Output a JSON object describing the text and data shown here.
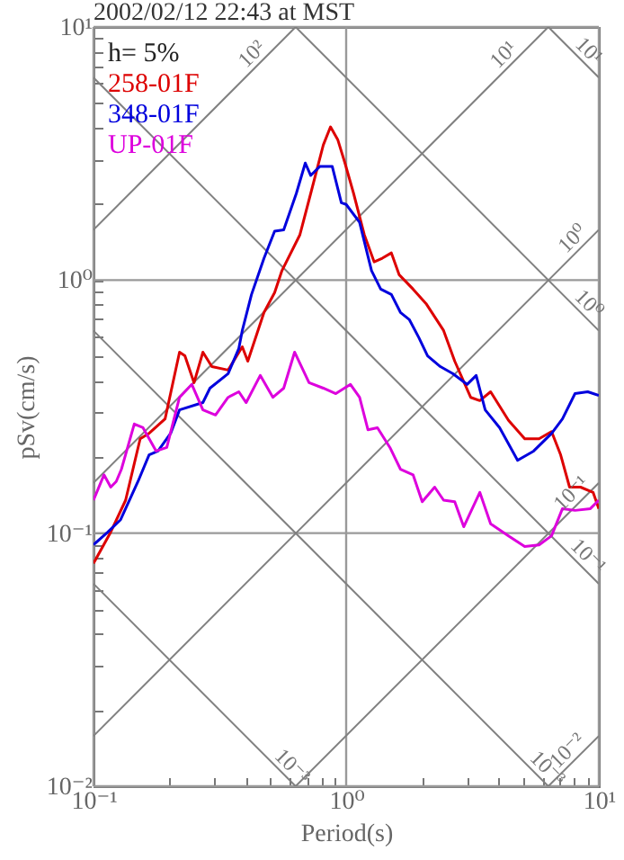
{
  "chart_data": {
    "type": "line",
    "title": "2002/02/12 22:43 at MST",
    "xlabel": "Period(s)",
    "ylabel": "pSv(cm/s)",
    "log": "xy",
    "grid": true,
    "legend": "top left",
    "xlim": [
      0.1,
      10
    ],
    "ylim": [
      0.01,
      10
    ],
    "xticks": [
      {
        "value": 0.1,
        "label": "10⁻¹"
      },
      {
        "value": 0.2,
        "label": null
      },
      {
        "value": 0.3,
        "label": null
      },
      {
        "value": 0.4,
        "label": null
      },
      {
        "value": 0.5,
        "label": null
      },
      {
        "value": 0.6,
        "label": null
      },
      {
        "value": 0.7,
        "label": null
      },
      {
        "value": 0.8,
        "label": null
      },
      {
        "value": 0.9,
        "label": null
      },
      {
        "value": 1,
        "label": "10⁰"
      },
      {
        "value": 2,
        "label": null
      },
      {
        "value": 3,
        "label": null
      },
      {
        "value": 4,
        "label": null
      },
      {
        "value": 5,
        "label": null
      },
      {
        "value": 6,
        "label": null
      },
      {
        "value": 7,
        "label": null
      },
      {
        "value": 8,
        "label": null
      },
      {
        "value": 9,
        "label": null
      },
      {
        "value": 10,
        "label": "10¹"
      }
    ],
    "yticks": [
      {
        "value": 0.01,
        "label": "10⁻²"
      },
      {
        "value": 0.02,
        "label": null
      },
      {
        "value": 0.03,
        "label": null
      },
      {
        "value": 0.04,
        "label": null
      },
      {
        "value": 0.05,
        "label": null
      },
      {
        "value": 0.06,
        "label": null
      },
      {
        "value": 0.07,
        "label": null
      },
      {
        "value": 0.08,
        "label": null
      },
      {
        "value": 0.09,
        "label": null
      },
      {
        "value": 0.1,
        "label": "10⁻¹"
      },
      {
        "value": 0.2,
        "label": null
      },
      {
        "value": 0.3,
        "label": null
      },
      {
        "value": 0.4,
        "label": null
      },
      {
        "value": 0.5,
        "label": null
      },
      {
        "value": 0.6,
        "label": null
      },
      {
        "value": 0.7,
        "label": null
      },
      {
        "value": 0.8,
        "label": null
      },
      {
        "value": 0.9,
        "label": null
      },
      {
        "value": 1,
        "label": "10⁰"
      },
      {
        "value": 2,
        "label": null
      },
      {
        "value": 3,
        "label": null
      },
      {
        "value": 4,
        "label": null
      },
      {
        "value": 5,
        "label": null
      },
      {
        "value": 6,
        "label": null
      },
      {
        "value": 7,
        "label": null
      },
      {
        "value": 8,
        "label": null
      },
      {
        "value": 9,
        "label": null
      },
      {
        "value": 10,
        "label": "10¹"
      }
    ],
    "annotations": [
      "h= 5%",
      {
        "text": "10²",
        "x": 0.457,
        "y": 7.24
      },
      {
        "text": "10¹",
        "x": 4.54,
        "y": 7.19
      },
      {
        "text": "10¹",
        "x": 8.46,
        "y": 7.46
      },
      {
        "text": "10⁰",
        "x": 8.5,
        "y": 1.35
      },
      {
        "text": "10⁰",
        "x": 8.46,
        "y": 0.746
      },
      {
        "text": "10⁻¹",
        "x": 8.4,
        "y": 0.133
      },
      {
        "text": "10⁻¹",
        "x": 8.4,
        "y": 0.0751
      },
      {
        "text": "10⁻³",
        "x": 0.566,
        "y": 0.0111
      },
      {
        "text": "10⁻³",
        "x": 5.8,
        "y": 0.0109
      },
      {
        "text": "10⁻²",
        "x": 8.1,
        "y": 0.0128
      }
    ],
    "series": [
      {
        "color": "#808080",
        "x": [
          6.31,
          10
        ],
        "values": [
          0.01,
          0.0158
        ]
      },
      {
        "color": "#808080",
        "x": [
          0.631,
          10
        ],
        "values": [
          0.01,
          0.158
        ]
      },
      {
        "color": "#808080",
        "x": [
          0.1,
          10
        ],
        "values": [
          0.0158,
          1.58
        ]
      },
      {
        "color": "#808080",
        "x": [
          0.1,
          6.31
        ],
        "values": [
          0.158,
          10
        ]
      },
      {
        "color": "#808080",
        "x": [
          0.1,
          0.631
        ],
        "values": [
          1.58,
          10
        ]
      },
      {
        "color": "#808080",
        "x": [
          0.1,
          0.631
        ],
        "values": [
          0.0631,
          0.01
        ]
      },
      {
        "color": "#808080",
        "x": [
          0.1,
          6.31
        ],
        "values": [
          0.631,
          0.01
        ]
      },
      {
        "color": "#808080",
        "x": [
          0.1,
          10
        ],
        "values": [
          6.31,
          0.0631
        ]
      },
      {
        "color": "#808080",
        "x": [
          0.631,
          10
        ],
        "values": [
          10,
          0.631
        ]
      },
      {
        "color": "#808080",
        "x": [
          6.31,
          10
        ],
        "values": [
          10,
          6.31
        ]
      },
      {
        "name": "258-01F",
        "color": "#dd0000",
        "x": [
          0.1,
          0.117,
          0.134,
          0.153,
          0.166,
          0.192,
          0.219,
          0.23,
          0.25,
          0.271,
          0.294,
          0.341,
          0.388,
          0.408,
          0.473,
          0.521,
          0.557,
          0.656,
          0.724,
          0.812,
          0.867,
          0.926,
          0.989,
          1.07,
          1.18,
          1.29,
          1.39,
          1.51,
          1.62,
          1.84,
          2.07,
          2.43,
          2.69,
          3.11,
          3.38,
          3.73,
          4.39,
          5.09,
          5.8,
          6.5,
          7.06,
          7.66,
          8.46,
          9.49,
          10
        ],
        "values": [
          0.076,
          0.101,
          0.135,
          0.236,
          0.248,
          0.283,
          0.519,
          0.502,
          0.393,
          0.519,
          0.455,
          0.441,
          0.545,
          0.478,
          0.745,
          0.892,
          1.09,
          1.51,
          2.2,
          3.42,
          4.03,
          3.59,
          2.9,
          2.2,
          1.51,
          1.18,
          1.22,
          1.28,
          1.05,
          0.921,
          0.808,
          0.632,
          0.478,
          0.344,
          0.334,
          0.362,
          0.279,
          0.236,
          0.236,
          0.252,
          0.204,
          0.152,
          0.152,
          0.145,
          0.125
        ]
      },
      {
        "name": "348-01F",
        "color": "#0000dd",
        "x": [
          0.1,
          0.114,
          0.128,
          0.15,
          0.166,
          0.18,
          0.202,
          0.219,
          0.271,
          0.289,
          0.341,
          0.376,
          0.388,
          0.422,
          0.473,
          0.521,
          0.566,
          0.635,
          0.689,
          0.724,
          0.786,
          0.881,
          0.957,
          1,
          1.13,
          1.26,
          1.37,
          1.51,
          1.64,
          1.78,
          1.94,
          2.1,
          2.36,
          2.64,
          3.01,
          3.27,
          3.55,
          4.05,
          4.77,
          5.52,
          6.51,
          7.18,
          8.05,
          9.04,
          10
        ],
        "values": [
          0.09,
          0.101,
          0.113,
          0.16,
          0.204,
          0.211,
          0.248,
          0.307,
          0.328,
          0.374,
          0.427,
          0.537,
          0.632,
          0.877,
          1.22,
          1.56,
          1.58,
          2.2,
          2.9,
          2.59,
          2.81,
          2.81,
          2.02,
          1.99,
          1.69,
          1.09,
          0.921,
          0.877,
          0.745,
          0.697,
          0.592,
          0.502,
          0.455,
          0.427,
          0.387,
          0.42,
          0.307,
          0.261,
          0.194,
          0.211,
          0.248,
          0.283,
          0.356,
          0.362,
          0.35
        ]
      },
      {
        "name": "UP-01F",
        "color": "#dd00dd",
        "x": [
          0.1,
          0.11,
          0.117,
          0.123,
          0.129,
          0.145,
          0.157,
          0.177,
          0.195,
          0.219,
          0.245,
          0.271,
          0.304,
          0.341,
          0.376,
          0.402,
          0.457,
          0.513,
          0.566,
          0.625,
          0.713,
          0.812,
          0.91,
          1.04,
          1.13,
          1.22,
          1.33,
          1.49,
          1.64,
          1.84,
          2,
          2.24,
          2.43,
          2.69,
          2.92,
          3.38,
          3.73,
          4.39,
          5.09,
          5.8,
          6.5,
          7.18,
          8.05,
          9.26,
          10
        ],
        "values": [
          0.135,
          0.17,
          0.152,
          0.16,
          0.179,
          0.27,
          0.261,
          0.211,
          0.218,
          0.344,
          0.387,
          0.307,
          0.293,
          0.344,
          0.362,
          0.328,
          0.42,
          0.344,
          0.374,
          0.519,
          0.393,
          0.374,
          0.356,
          0.387,
          0.344,
          0.256,
          0.261,
          0.218,
          0.179,
          0.17,
          0.133,
          0.152,
          0.135,
          0.133,
          0.106,
          0.145,
          0.109,
          0.0976,
          0.0885,
          0.0899,
          0.0976,
          0.125,
          0.123,
          0.125,
          0.135
        ]
      }
    ]
  }
}
